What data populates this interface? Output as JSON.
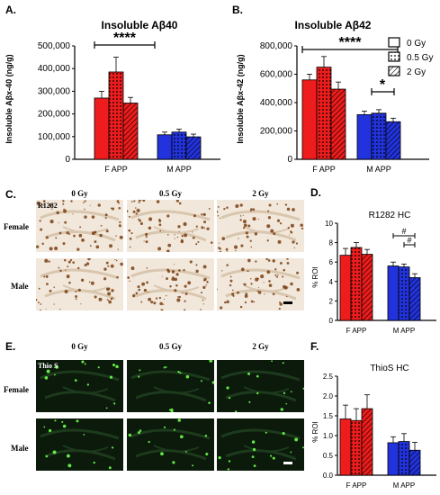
{
  "panels": {
    "A": {
      "label": "A.",
      "chart_data": {
        "type": "bar",
        "title": "Insoluble Aβ40",
        "ylabel": "Insoluble Aβx-40 (ng/g)",
        "ylim": [
          0,
          500000
        ],
        "yticks": [
          "0",
          "100,000",
          "200,000",
          "300,000",
          "400,000",
          "500,000"
        ],
        "categories": [
          "F APP",
          "M APP"
        ],
        "series": [
          {
            "name": "0 Gy",
            "values": [
              270000,
              108000
            ],
            "errors": [
              30000,
              12000
            ]
          },
          {
            "name": "0.5 Gy",
            "values": [
              385000,
              120000
            ],
            "errors": [
              65000,
              13000
            ]
          },
          {
            "name": "2 Gy",
            "values": [
              248000,
              99000
            ],
            "errors": [
              25000,
              12000
            ]
          }
        ],
        "annotations": [
          {
            "text": "****",
            "between": [
              "F APP",
              "M APP"
            ]
          }
        ]
      }
    },
    "B": {
      "label": "B.",
      "chart_data": {
        "type": "bar",
        "title": "Insoluble Aβ42",
        "ylabel": "Insoluble Aβx-42 (ng/g)",
        "ylim": [
          0,
          800000
        ],
        "yticks": [
          "0",
          "200,000",
          "400,000",
          "600,000",
          "800,000"
        ],
        "categories": [
          "F APP",
          "M APP"
        ],
        "series": [
          {
            "name": "0 Gy",
            "values": [
              560000,
              315000
            ],
            "errors": [
              40000,
              25000
            ]
          },
          {
            "name": "0.5 Gy",
            "values": [
              650000,
              325000
            ],
            "errors": [
              75000,
              25000
            ]
          },
          {
            "name": "2 Gy",
            "values": [
              495000,
              265000
            ],
            "errors": [
              50000,
              25000
            ]
          }
        ],
        "annotations": [
          {
            "text": "****",
            "between": [
              "F APP",
              "M APP"
            ]
          },
          {
            "text": "*",
            "between": [
              "0.5 Gy",
              "2 Gy"
            ],
            "group": "M APP"
          }
        ],
        "legend": [
          "0 Gy",
          "0.5 Gy",
          "2 Gy"
        ]
      }
    },
    "C": {
      "label": "C.",
      "columns": [
        "0 Gy",
        "0.5 Gy",
        "2 Gy"
      ],
      "rows": [
        "Female",
        "Male"
      ],
      "stain": "R1282"
    },
    "D": {
      "label": "D.",
      "chart_data": {
        "type": "bar",
        "title": "R1282 HC",
        "ylabel": "% ROI",
        "ylim": [
          0,
          10
        ],
        "yticks": [
          "0",
          "2",
          "4",
          "6",
          "8",
          "10"
        ],
        "categories": [
          "F APP",
          "M APP"
        ],
        "series": [
          {
            "name": "0 Gy",
            "values": [
              6.7,
              5.6
            ],
            "errors": [
              0.7,
              0.4
            ]
          },
          {
            "name": "0.5 Gy",
            "values": [
              7.5,
              5.5
            ],
            "errors": [
              0.5,
              0.3
            ]
          },
          {
            "name": "2 Gy",
            "values": [
              6.8,
              4.4
            ],
            "errors": [
              0.5,
              0.4
            ]
          }
        ],
        "annotations": [
          {
            "text": "#",
            "between": [
              "0 Gy",
              "2 Gy"
            ],
            "group": "M APP"
          },
          {
            "text": "#",
            "between": [
              "0.5 Gy",
              "2 Gy"
            ],
            "group": "M APP"
          }
        ]
      }
    },
    "E": {
      "label": "E.",
      "columns": [
        "0 Gy",
        "0.5 Gy",
        "2 Gy"
      ],
      "rows": [
        "Female",
        "Male"
      ],
      "stain": "Thio S"
    },
    "F": {
      "label": "F.",
      "chart_data": {
        "type": "bar",
        "title": "ThioS HC",
        "ylabel": "% ROI",
        "ylim": [
          0,
          2.5
        ],
        "yticks": [
          "0.0",
          "0.5",
          "1.0",
          "1.5",
          "2.0",
          "2.5"
        ],
        "categories": [
          "F APP",
          "M APP"
        ],
        "series": [
          {
            "name": "0 Gy",
            "values": [
              1.42,
              0.82
            ],
            "errors": [
              0.35,
              0.15
            ]
          },
          {
            "name": "0.5 Gy",
            "values": [
              1.38,
              0.85
            ],
            "errors": [
              0.3,
              0.2
            ]
          },
          {
            "name": "2 Gy",
            "values": [
              1.68,
              0.63
            ],
            "errors": [
              0.35,
              0.2
            ]
          }
        ]
      }
    }
  },
  "colors": {
    "female": "#ee1c1c",
    "male": "#2233dd",
    "thio_bg": "#0b1a0b",
    "thio_spot": "#6dff4a",
    "ihc_bg": "#f1e7da",
    "ihc_spot": "#7a3e12"
  }
}
